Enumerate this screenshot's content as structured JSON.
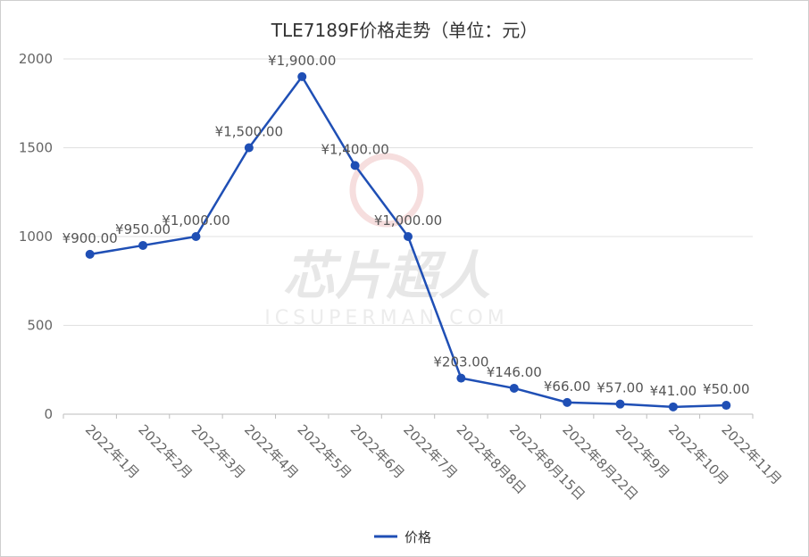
{
  "chart_data": {
    "type": "line",
    "title": "TLE7189F价格走势（单位：元）",
    "categories": [
      "2022年1月",
      "2022年2月",
      "2022年3月",
      "2022年4月",
      "2022年5月",
      "2022年6月",
      "2022年7月",
      "2022年8月8日",
      "2022年8月15日",
      "2022年8月22日",
      "2022年9月",
      "2022年10月",
      "2022年11月"
    ],
    "series": [
      {
        "name": "价格",
        "values": [
          900,
          950,
          1000,
          1500,
          1900,
          1400,
          1000,
          203,
          146,
          66,
          57,
          41,
          50
        ],
        "labels": [
          "¥900.00",
          "¥950.00",
          "¥1,000.00",
          "¥1,500.00",
          "¥1,900.00",
          "¥1,400.00",
          "¥1,000.00",
          "¥203.00",
          "¥146.00",
          "¥66.00",
          "¥57.00",
          "¥41.00",
          "¥50.00"
        ],
        "color": "#1f4fb5"
      }
    ],
    "yticks": [
      "0",
      "500",
      "1000",
      "1500",
      "2000"
    ],
    "ylim": [
      0,
      2000
    ],
    "grid": true,
    "legend": "bottom-center"
  },
  "watermark": {
    "text": "芯片超人",
    "subtext": "ICSUPERMAN.COM"
  }
}
